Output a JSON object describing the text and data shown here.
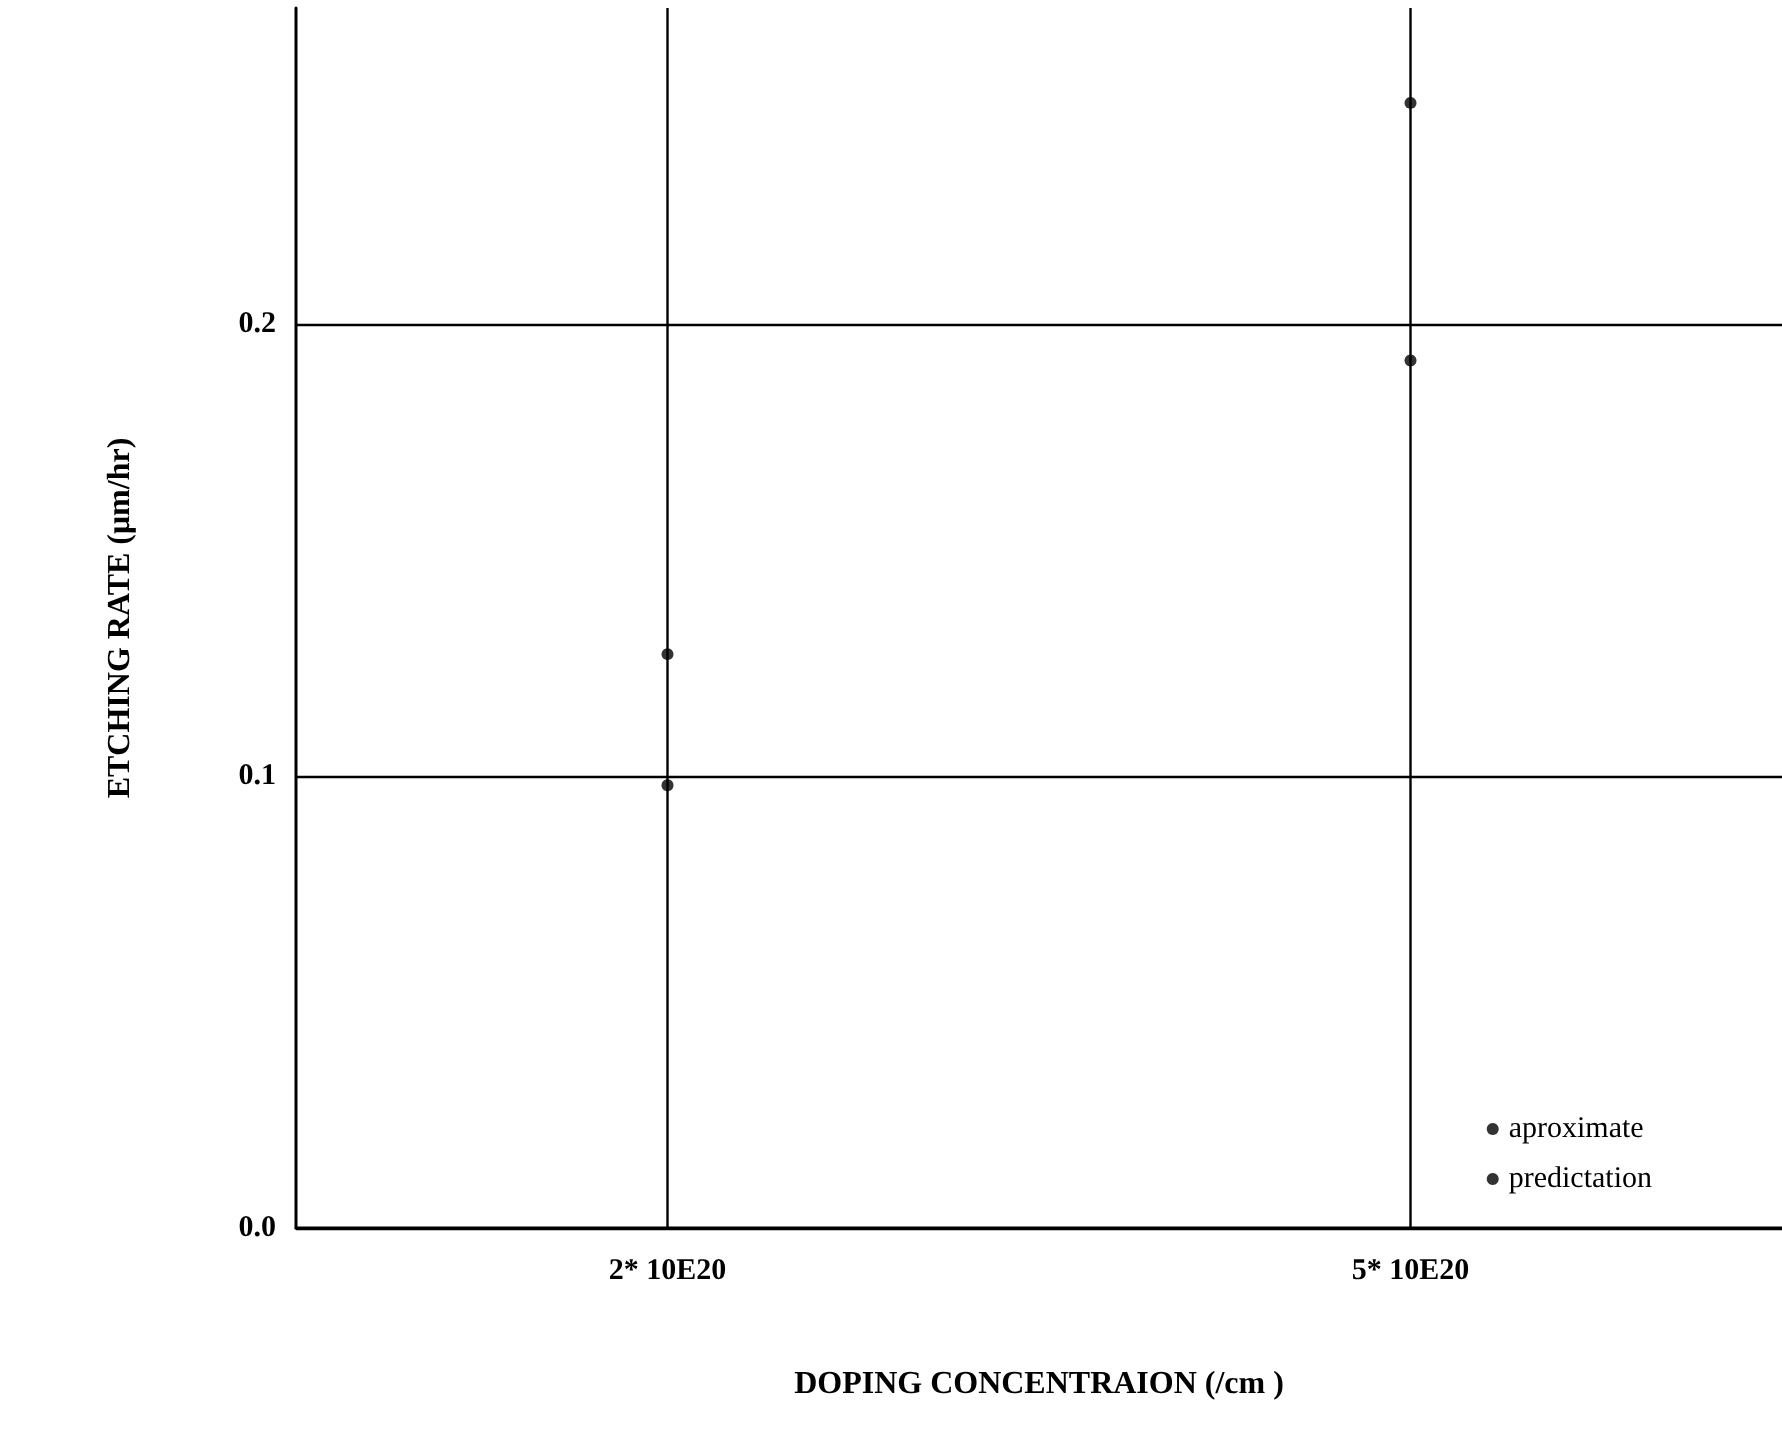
{
  "chart_data": {
    "type": "scatter",
    "xlabel": "DOPING CONCENTRAION (/cm )",
    "ylabel": "ETCHING RATE (μm/hr)",
    "categories": [
      "2* 10E20",
      "5* 10E20"
    ],
    "series": [
      {
        "name": "aproximate",
        "color": "#000000",
        "values": [
          0.127,
          0.249
        ]
      },
      {
        "name": "predictation",
        "color": "#000000",
        "values": [
          0.098,
          0.192
        ]
      }
    ],
    "ylim": [
      0,
      0.27
    ],
    "yticks": [
      {
        "value": 0,
        "label": "0.0"
      },
      0.1,
      0.2
    ],
    "grid": true,
    "legend": "bottom right",
    "marker": "circle"
  }
}
